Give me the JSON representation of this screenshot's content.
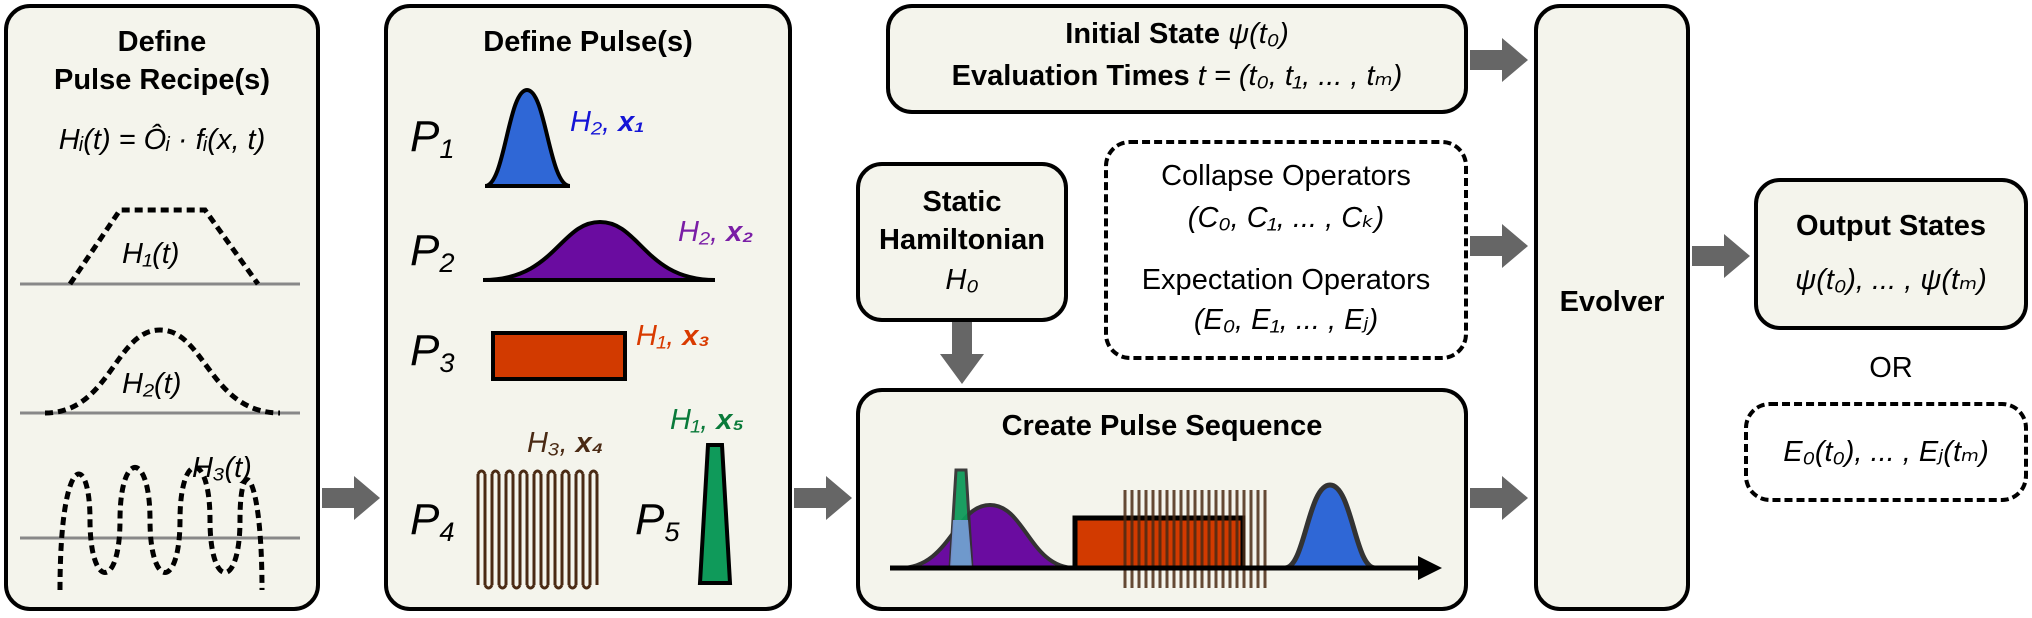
{
  "recipes": {
    "title_line1": "Define",
    "title_line2": "Pulse Recipe(s)",
    "formula": "Hᵢ(t) = Ôᵢ · fᵢ(x, t)",
    "h1": "H₁(t)",
    "h2": "H₂(t)",
    "h3": "H₃(t)"
  },
  "pulses": {
    "title": "Define Pulse(s)",
    "items": [
      {
        "p": "P",
        "n": "1",
        "h": "H₂",
        "x": "x₁",
        "color": "#1515d6",
        "fill": "#2f67d6"
      },
      {
        "p": "P",
        "n": "2",
        "h": "H₂",
        "x": "x₂",
        "color": "#7a1ea6",
        "fill": "#6a0ca0"
      },
      {
        "p": "P",
        "n": "3",
        "h": "H₁",
        "x": "x₃",
        "color": "#d93a00",
        "fill": "#d23a00"
      },
      {
        "p": "P",
        "n": "4",
        "h": "H₃",
        "x": "x₄",
        "color": "#4a2a14",
        "fill": "#4a2a14"
      },
      {
        "p": "P",
        "n": "5",
        "h": "H₁",
        "x": "x₅",
        "color": "#0a7a3a",
        "fill": "#0f9a5a"
      }
    ]
  },
  "initial": {
    "line1_bold": "Initial State",
    "line1_math": "ψ(t₀)",
    "line2_bold": "Evaluation Times",
    "line2_math": "t = (t₀, t₁, ... , tₘ)"
  },
  "static": {
    "line1": "Static",
    "line2": "Hamiltonian",
    "line3": "H₀"
  },
  "collapse": {
    "line1": "Collapse Operators",
    "line2": "(C₀, C₁, ... , Cₖ)",
    "line3": "Expectation Operators",
    "line4": "(E₀, E₁, ... , Eⱼ)"
  },
  "sequence": {
    "title": "Create Pulse Sequence"
  },
  "evolver": {
    "label": "Evolver"
  },
  "output": {
    "title": "Output States",
    "states": "ψ(t₀), ... , ψ(tₘ)",
    "or": "OR",
    "expect": "E₀(t₀), ... , Eⱼ(tₘ)"
  }
}
